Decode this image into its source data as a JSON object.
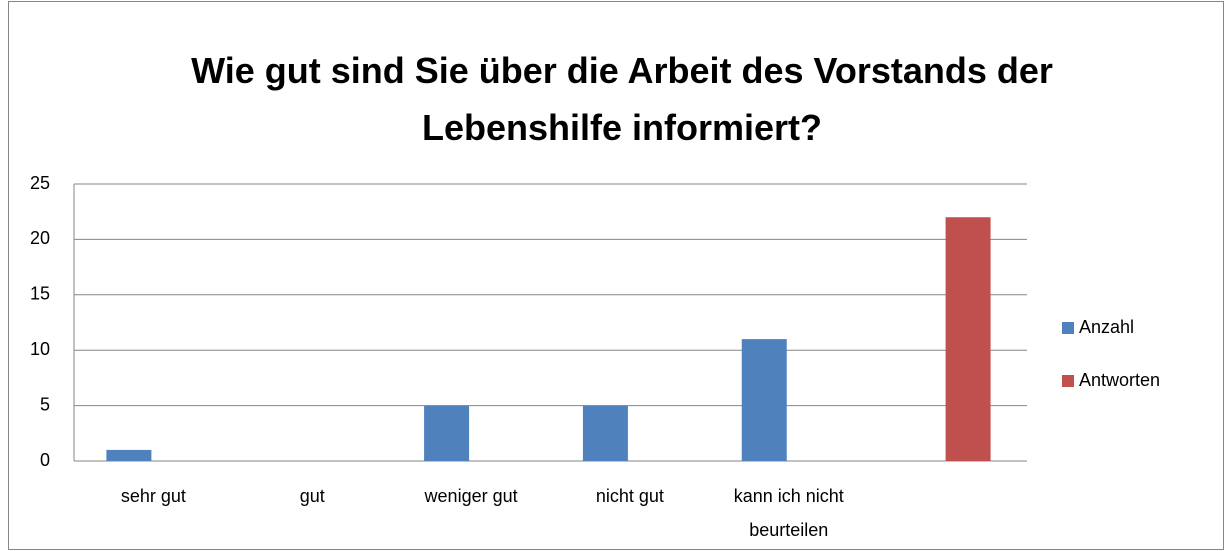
{
  "chart_data": {
    "type": "bar",
    "title": "Wie gut sind Sie über die Arbeit des Vorstands der Lebenshilfe informiert?",
    "categories": [
      "sehr gut",
      "gut",
      "weniger gut",
      "nicht gut",
      "kann ich nicht beurteilen",
      null
    ],
    "series": [
      {
        "name": "Anzahl",
        "color": "#4f81bd",
        "values": [
          1,
          0,
          5,
          5,
          11,
          null
        ]
      },
      {
        "name": "Antworten",
        "color": "#c0504d",
        "values": [
          null,
          null,
          null,
          null,
          null,
          22
        ]
      }
    ],
    "ylim": [
      0,
      25
    ],
    "yticks": [
      0,
      5,
      10,
      15,
      20,
      25
    ],
    "grid": true,
    "legend": "right"
  }
}
